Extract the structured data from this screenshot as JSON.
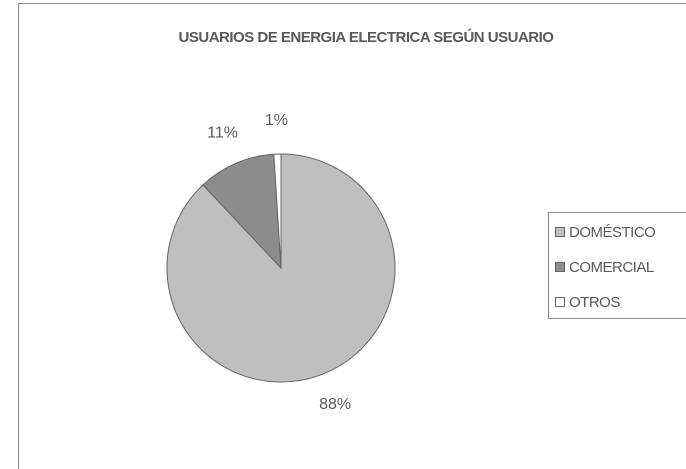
{
  "chart_data": {
    "type": "pie",
    "title": "USUARIOS DE ENERGIA ELECTRICA SEGÚN USUARIO",
    "categories": [
      "DOMÉSTICO",
      "COMERCIAL",
      "OTROS"
    ],
    "values": [
      88,
      11,
      1
    ],
    "value_labels": [
      "88%",
      "11%",
      "1%"
    ],
    "colors": [
      "#bfbfbf",
      "#8c8c8c",
      "#ffffff"
    ],
    "legend": "right"
  }
}
